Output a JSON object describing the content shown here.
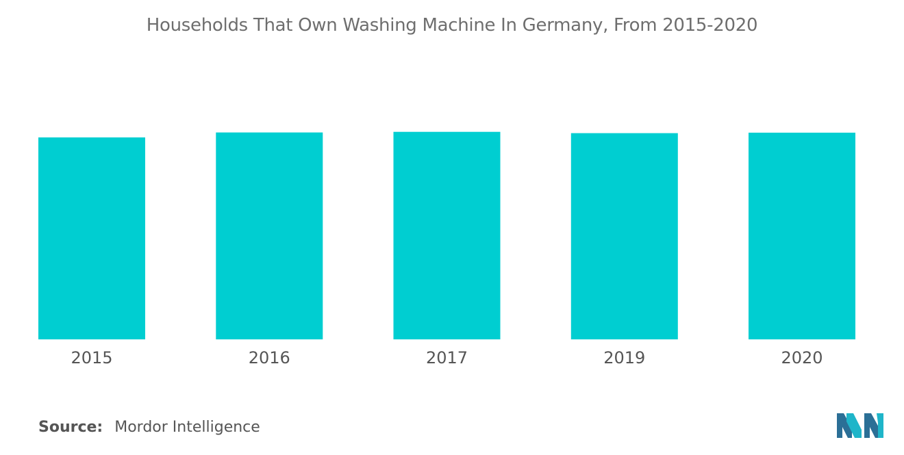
{
  "chart_data": {
    "type": "bar",
    "title": "Households That Own Washing Machine In Germany, From 2015-2020",
    "categories": [
      "2015",
      "2016",
      "2017",
      "2019",
      "2020"
    ],
    "series": [
      {
        "values": [
          94.0,
          96.3,
          96.6,
          96.0,
          96.2
        ]
      }
    ],
    "xlabel": "",
    "ylabel": "",
    "ylim": [
      0,
      100
    ],
    "grid": false,
    "legend": "none",
    "bar_color": "#00ced1"
  },
  "footer": {
    "source_label": "Source:",
    "source_value": "Mordor Intelligence"
  },
  "logo": {
    "icon": "mordor-intelligence-logo-icon",
    "colors": [
      "#2b6f96",
      "#1fb5c9"
    ]
  }
}
